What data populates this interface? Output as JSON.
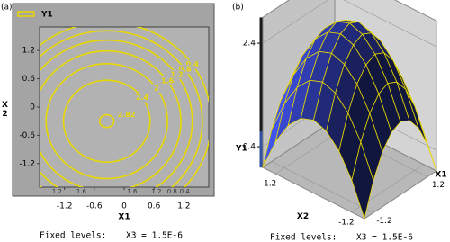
{
  "chart_data": [
    {
      "type": "contour",
      "label": "(a)",
      "legend": "Y1",
      "color": "#e8d800",
      "xlabel": "X1",
      "ylabel": "X2",
      "xlim": [
        -1.7,
        1.7
      ],
      "ylim": [
        -1.7,
        1.7
      ],
      "xticks": [
        -1.2,
        -0.6,
        0,
        0.6,
        1.2
      ],
      "yticks": [
        -1.2,
        -0.6,
        0,
        0.6,
        1.2
      ],
      "levels": [
        0.4,
        0.8,
        1.2,
        1.6,
        2,
        2.4
      ],
      "radii": [
        2.1,
        1.92,
        1.72,
        1.49,
        1.22,
        0.87
      ],
      "peak": {
        "x": -0.35,
        "y": -0.3,
        "value": 2.82
      },
      "fixed_label": "Fixed levels:",
      "fixed_value": "X3 = 1.5E-6"
    },
    {
      "type": "surface",
      "label": "(b)",
      "zlabel": "Y1",
      "xlabel": "X1",
      "ylabel": "X2",
      "surface_color": "#1c2468",
      "line_color": "#e8d800",
      "wall_color": "#c4c4c4",
      "x": [
        -1.6,
        -1.2,
        -0.8,
        -0.4,
        0,
        0.4,
        0.8,
        1.2,
        1.6
      ],
      "y": [
        -1.6,
        -1.2,
        -0.8,
        -0.4,
        0,
        0.4,
        0.8,
        1.2,
        1.6
      ],
      "z": [
        [
          0,
          0.62,
          1.06,
          1.32,
          1.41,
          1.32,
          1.06,
          0.62,
          0
        ],
        [
          0.62,
          1.24,
          1.68,
          1.94,
          2.03,
          1.94,
          1.68,
          1.24,
          0.62
        ],
        [
          1.06,
          1.68,
          2.12,
          2.38,
          2.47,
          2.38,
          2.12,
          1.68,
          1.06
        ],
        [
          1.32,
          1.94,
          2.38,
          2.64,
          2.73,
          2.64,
          2.38,
          1.94,
          1.32
        ],
        [
          1.41,
          2.03,
          2.47,
          2.73,
          2.82,
          2.73,
          2.47,
          2.03,
          1.41
        ],
        [
          1.32,
          1.94,
          2.38,
          2.64,
          2.73,
          2.64,
          2.38,
          1.94,
          1.32
        ],
        [
          1.06,
          1.68,
          2.12,
          2.38,
          2.47,
          2.38,
          2.12,
          1.68,
          1.06
        ],
        [
          0.62,
          1.24,
          1.68,
          1.94,
          2.03,
          1.94,
          1.68,
          1.24,
          0.62
        ],
        [
          0,
          0.62,
          1.06,
          1.32,
          1.41,
          1.32,
          1.06,
          0.62,
          0
        ]
      ],
      "xlim": [
        -1.6,
        1.6
      ],
      "ylim": [
        -1.6,
        1.6
      ],
      "zlim": [
        0,
        2.9
      ],
      "xticks": [
        -1.2,
        1.2
      ],
      "yticks": [
        -1.2,
        1.2
      ],
      "zticks": [
        0.4,
        2.4
      ],
      "fixed_label": "Fixed levels:",
      "fixed_value": "X3 = 1.5E-6"
    }
  ]
}
